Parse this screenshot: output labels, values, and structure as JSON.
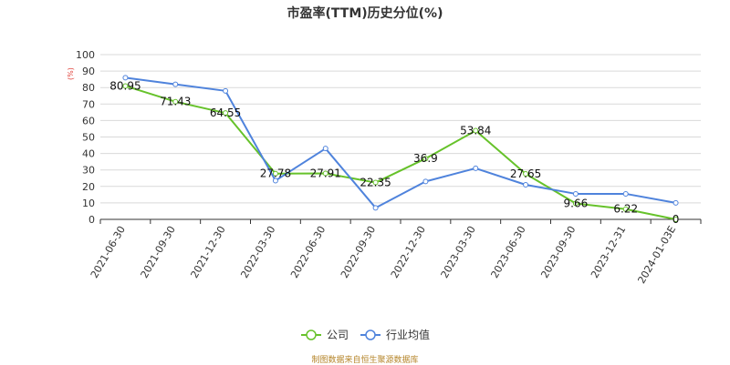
{
  "chart_data": {
    "type": "line",
    "title": "市盈率(TTM)历史分位(%)",
    "ylabel": "%",
    "xlabel": "",
    "ylim": [
      0,
      100
    ],
    "yticks": [
      0,
      10,
      20,
      30,
      40,
      50,
      60,
      70,
      80,
      90,
      100
    ],
    "grid": true,
    "legend_position": "bottom",
    "categories": [
      "2021-06-30",
      "2021-09-30",
      "2021-12-30",
      "2022-03-30",
      "2022-06-30",
      "2022-09-30",
      "2022-12-30",
      "2023-03-30",
      "2023-06-30",
      "2023-09-30",
      "2023-12-31",
      "2024-01-03E"
    ],
    "series": [
      {
        "name": "公司",
        "color": "#66c22a",
        "values": [
          80.95,
          71.43,
          64.55,
          27.78,
          27.91,
          22.35,
          36.9,
          53.84,
          27.65,
          9.66,
          6.22,
          0
        ],
        "labels": [
          "80.95",
          "71.43",
          "64.55",
          "27.78",
          "27.91",
          "22.35",
          "36.9",
          "53.84",
          "27.65",
          "9.66",
          "6.22",
          "0"
        ]
      },
      {
        "name": "行业均值",
        "color": "#4f83dc",
        "values": [
          86,
          82,
          78,
          23.5,
          43,
          7,
          23,
          31,
          21,
          15.5,
          15.5,
          10
        ]
      }
    ]
  },
  "source_text": "制图数据来自恒生聚源数据库"
}
